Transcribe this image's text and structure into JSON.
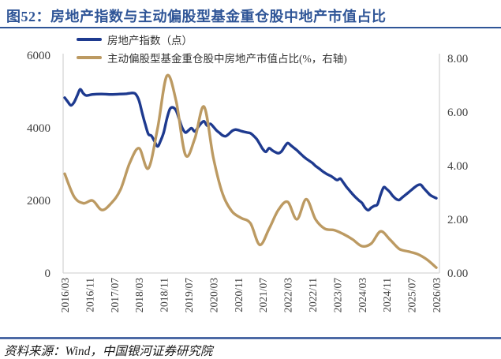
{
  "header": {
    "title": "图52：房地产指数与主动偏股型基金重仓股中地产市值占比"
  },
  "footer": {
    "source_text": "资料来源：Wind，中国银河证券研究院"
  },
  "colors": {
    "title_blue": "#2F5597",
    "top_divider": "#2F5597",
    "bottom_divider": "#4C69A5",
    "index_line": "#1E3A8F",
    "ratio_line": "#BC9A62",
    "axis_line": "#D6D6D6",
    "tick_text": "#3F3F3F"
  },
  "chart_data": {
    "type": "line",
    "title": "房地产指数与主动偏股型基金重仓股中地产市值占比",
    "legend_position": "top-left",
    "grid": false,
    "x_axis": {
      "start": "2016/03",
      "end": "2026/03",
      "months_per_tick": 8,
      "tick_labels": [
        "2016/03",
        "2016/11",
        "2017/07",
        "2018/03",
        "2018/11",
        "2019/07",
        "2020/03",
        "2020/11",
        "2021/07",
        "2022/03",
        "2022/11",
        "2023/07",
        "2024/03",
        "2024/11",
        "2025/07",
        "2026/03"
      ]
    },
    "left_axis": {
      "range": [
        0,
        6000
      ],
      "tick_values": [
        0,
        2000,
        4000,
        6000
      ],
      "tick_labels": [
        "0",
        "2000",
        "4000",
        "6000"
      ]
    },
    "right_axis": {
      "range": [
        0,
        8
      ],
      "tick_values": [
        0,
        2,
        4,
        6,
        8
      ],
      "tick_labels": [
        "0.00",
        "2.00",
        "4.00",
        "6.00",
        "8.00"
      ]
    },
    "x_unit": "months_since_2016/03",
    "series": [
      {
        "name": "房地产指数（点）",
        "axis": "left",
        "color": "#1E3A8F",
        "points": [
          [
            0,
            4830
          ],
          [
            1,
            4720
          ],
          [
            2,
            4620
          ],
          [
            3,
            4700
          ],
          [
            4,
            4880
          ],
          [
            5,
            5060
          ],
          [
            6,
            4950
          ],
          [
            7,
            4890
          ],
          [
            9,
            4920
          ],
          [
            12,
            4930
          ],
          [
            15,
            4920
          ],
          [
            18,
            4930
          ],
          [
            20,
            4940
          ],
          [
            22,
            4960
          ],
          [
            23,
            4920
          ],
          [
            24,
            4750
          ],
          [
            25,
            4420
          ],
          [
            26,
            4100
          ],
          [
            27,
            3830
          ],
          [
            28,
            3780
          ],
          [
            29,
            3630
          ],
          [
            30,
            3490
          ],
          [
            31,
            3650
          ],
          [
            32,
            3880
          ],
          [
            33,
            4250
          ],
          [
            34,
            4520
          ],
          [
            35,
            4560
          ],
          [
            36,
            4470
          ],
          [
            37,
            4230
          ],
          [
            38,
            3990
          ],
          [
            39,
            3870
          ],
          [
            40,
            3930
          ],
          [
            41,
            3990
          ],
          [
            42,
            3900
          ],
          [
            43,
            4010
          ],
          [
            44,
            4120
          ],
          [
            45,
            4180
          ],
          [
            46,
            4060
          ],
          [
            47,
            4110
          ],
          [
            48,
            4030
          ],
          [
            49,
            3930
          ],
          [
            50,
            3860
          ],
          [
            51,
            3790
          ],
          [
            52,
            3770
          ],
          [
            53,
            3830
          ],
          [
            54,
            3910
          ],
          [
            55,
            3950
          ],
          [
            56,
            3940
          ],
          [
            57,
            3910
          ],
          [
            58,
            3890
          ],
          [
            59,
            3870
          ],
          [
            60,
            3850
          ],
          [
            61,
            3780
          ],
          [
            62,
            3690
          ],
          [
            63,
            3550
          ],
          [
            64,
            3410
          ],
          [
            65,
            3340
          ],
          [
            66,
            3440
          ],
          [
            67,
            3380
          ],
          [
            68,
            3330
          ],
          [
            69,
            3300
          ],
          [
            70,
            3350
          ],
          [
            71,
            3480
          ],
          [
            72,
            3580
          ],
          [
            73,
            3520
          ],
          [
            74,
            3450
          ],
          [
            75,
            3380
          ],
          [
            76,
            3300
          ],
          [
            77,
            3220
          ],
          [
            78,
            3150
          ],
          [
            79,
            3090
          ],
          [
            80,
            3030
          ],
          [
            81,
            2950
          ],
          [
            82,
            2890
          ],
          [
            83,
            2820
          ],
          [
            84,
            2760
          ],
          [
            85,
            2710
          ],
          [
            86,
            2670
          ],
          [
            87,
            2610
          ],
          [
            88,
            2560
          ],
          [
            89,
            2600
          ],
          [
            90,
            2490
          ],
          [
            91,
            2370
          ],
          [
            92,
            2270
          ],
          [
            93,
            2170
          ],
          [
            94,
            2080
          ],
          [
            95,
            2000
          ],
          [
            96,
            1930
          ],
          [
            97,
            1800
          ],
          [
            98,
            1730
          ],
          [
            99,
            1800
          ],
          [
            100,
            1850
          ],
          [
            101,
            1890
          ],
          [
            102,
            2150
          ],
          [
            103,
            2360
          ],
          [
            104,
            2310
          ],
          [
            105,
            2230
          ],
          [
            106,
            2120
          ],
          [
            107,
            2040
          ],
          [
            108,
            2010
          ],
          [
            109,
            2080
          ],
          [
            110,
            2150
          ],
          [
            111,
            2220
          ],
          [
            112,
            2290
          ],
          [
            113,
            2360
          ],
          [
            114,
            2420
          ],
          [
            115,
            2430
          ],
          [
            116,
            2330
          ],
          [
            117,
            2240
          ],
          [
            118,
            2150
          ],
          [
            119,
            2100
          ],
          [
            120,
            2060
          ]
        ]
      },
      {
        "name": "主动偏股型基金重仓股中房地产市值占比(%，右轴)",
        "axis": "right",
        "color": "#BC9A62",
        "points": [
          [
            0,
            3.7
          ],
          [
            3,
            2.85
          ],
          [
            6,
            2.6
          ],
          [
            9,
            2.7
          ],
          [
            12,
            2.35
          ],
          [
            15,
            2.6
          ],
          [
            18,
            3.1
          ],
          [
            21,
            4.1
          ],
          [
            24,
            4.65
          ],
          [
            27,
            3.9
          ],
          [
            30,
            5.4
          ],
          [
            33,
            7.35
          ],
          [
            36,
            6.4
          ],
          [
            39,
            4.4
          ],
          [
            42,
            5.0
          ],
          [
            45,
            6.2
          ],
          [
            48,
            4.3
          ],
          [
            51,
            2.95
          ],
          [
            54,
            2.3
          ],
          [
            57,
            2.05
          ],
          [
            60,
            1.85
          ],
          [
            63,
            1.05
          ],
          [
            66,
            1.65
          ],
          [
            69,
            2.35
          ],
          [
            72,
            2.65
          ],
          [
            75,
            2.0
          ],
          [
            78,
            2.75
          ],
          [
            81,
            2.0
          ],
          [
            84,
            1.65
          ],
          [
            87,
            1.6
          ],
          [
            90,
            1.45
          ],
          [
            93,
            1.25
          ],
          [
            96,
            1.0
          ],
          [
            99,
            1.1
          ],
          [
            102,
            1.55
          ],
          [
            105,
            1.25
          ],
          [
            108,
            0.9
          ],
          [
            111,
            0.8
          ],
          [
            114,
            0.7
          ],
          [
            117,
            0.5
          ],
          [
            120,
            0.2
          ]
        ]
      }
    ]
  }
}
